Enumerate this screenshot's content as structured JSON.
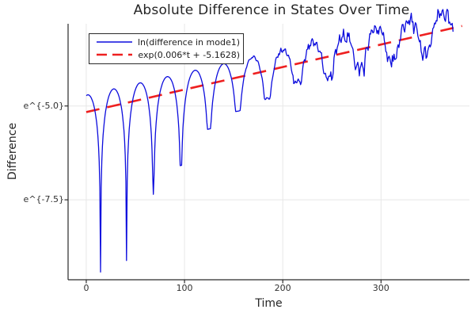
{
  "chart_data": {
    "type": "line",
    "title": "Absolute Difference in States Over Time",
    "xlabel": "Time",
    "ylabel": "Difference",
    "grid": true,
    "legend_position": "top-left",
    "xlim": [
      -18.5,
      390
    ],
    "ylim_ln": [
      -9.63,
      -2.81
    ],
    "x_ticks": [
      {
        "value": 0,
        "label": "0"
      },
      {
        "value": 100,
        "label": "100"
      },
      {
        "value": 200,
        "label": "200"
      },
      {
        "value": 300,
        "label": "300"
      }
    ],
    "y_ticks": [
      {
        "ln": -5.0,
        "label": "e^{-5.0}"
      },
      {
        "ln": -7.5,
        "label": "e^{-7.5}"
      }
    ],
    "axis_color": "#2a2a2a",
    "grid_color": "#e7e7e7",
    "series": [
      {
        "name": "ln(difference in mode1)",
        "color": "#0c0cdd",
        "line_style": "solid",
        "line_width": 1.3,
        "t_range": [
          0,
          374
        ],
        "model": {
          "trend_slope": 0.006,
          "trend_intercept": -5.1628,
          "peak_offset": 0.45,
          "dip_times": [
            14.5,
            41.0,
            68.3,
            96.3,
            124.9,
            154.3,
            184.3,
            215.0,
            246.5,
            278.7,
            311.5,
            345.0,
            379.3
          ],
          "dip_depths": [
            -4.35,
            -4.2,
            -2.6,
            -2.0,
            -1.2,
            -0.9,
            -0.73,
            -0.5,
            -0.54,
            -0.5,
            -0.5,
            -0.5,
            -0.45
          ],
          "virtual_first_dip_t": -11.8,
          "virtual_last_dip_t": 414,
          "t_start": 0,
          "t_end": 374,
          "noise": {
            "start_t": 150,
            "ramp_t": 130,
            "amp": 0.16
          }
        },
        "key_points_ln": {
          "peaks": [
            [
              27.8,
              -4.54
            ],
            [
              54.7,
              -4.35
            ],
            [
              82.3,
              -4.12
            ],
            [
              110.6,
              -3.93
            ],
            [
              139.6,
              -3.78
            ],
            [
              169.3,
              -3.62
            ],
            [
              199.7,
              -3.5
            ],
            [
              230.8,
              -3.38
            ],
            [
              262.6,
              -3.3
            ],
            [
              295.1,
              -3.2
            ],
            [
              328.3,
              -3.1
            ],
            [
              362.2,
              -3.0
            ]
          ],
          "dips": [
            [
              14.5,
              -9.43
            ],
            [
              41.0,
              -9.12
            ],
            [
              68.3,
              -7.35
            ],
            [
              96.3,
              -6.59
            ],
            [
              124.9,
              -5.61
            ],
            [
              154.3,
              -5.14
            ],
            [
              184.3,
              -4.79
            ],
            [
              215.0,
              -4.37
            ],
            [
              246.5,
              -4.22
            ],
            [
              278.7,
              -3.99
            ],
            [
              311.5,
              -3.79
            ],
            [
              345.0,
              -3.59
            ],
            [
              379.3,
              -3.34
            ]
          ]
        }
      },
      {
        "name": "exp(0.006*t + -5.1628)",
        "color": "#ee2020",
        "line_style": "dashed",
        "line_width": 2.6,
        "slope": 0.006,
        "intercept": -5.1628,
        "t_range": [
          0,
          382.5
        ]
      }
    ]
  }
}
